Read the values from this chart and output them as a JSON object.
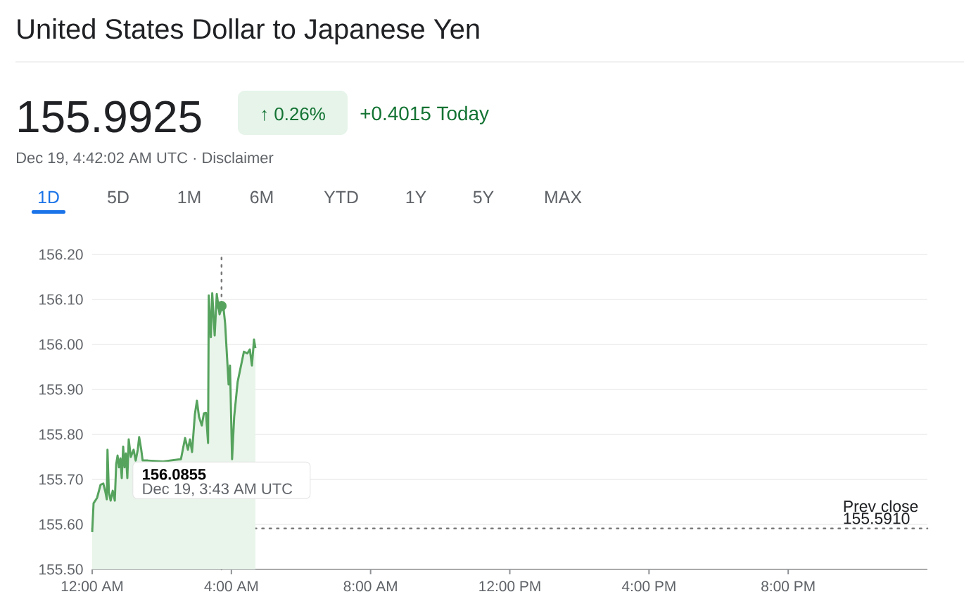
{
  "chart_data": {
    "type": "area",
    "title": "United States Dollar to Japanese Yen",
    "annotations": [
      "155.9925",
      "↑ 0.26%",
      "+0.4015 Today",
      "Dec 19, 4:42:02 AM UTC · Disclaimer",
      "1D",
      "5D",
      "1M",
      "6M",
      "YTD",
      "1Y",
      "5Y",
      "MAX",
      "156.0855",
      "Dec 19, 3:43 AM UTC"
    ],
    "x": [
      0,
      0.04,
      0.14,
      0.24,
      0.32,
      0.38,
      0.42,
      0.44,
      0.48,
      0.53,
      0.59,
      0.65,
      0.69,
      0.73,
      0.77,
      0.81,
      0.85,
      0.89,
      0.93,
      0.97,
      1.01,
      1.05,
      1.11,
      1.19,
      1.25,
      1.31,
      1.35,
      1.41,
      1.45,
      1.52,
      1.6,
      1.8,
      2.04,
      2.3,
      2.55,
      2.67,
      2.75,
      2.81,
      2.87,
      2.95,
      3.01,
      3.07,
      3.15,
      3.21,
      3.27,
      3.33,
      3.35,
      3.41,
      3.45,
      3.52,
      3.58,
      3.66,
      3.76,
      3.82,
      3.92,
      3.96,
      4.02,
      4.08,
      4.18,
      4.36,
      4.46,
      4.53,
      4.59,
      4.65,
      4.69
    ],
    "series": [
      {
        "color": "#56a35e",
        "values": [
          155.583,
          155.647,
          155.659,
          155.688,
          155.691,
          155.672,
          155.656,
          155.766,
          155.672,
          155.653,
          155.675,
          155.653,
          155.734,
          155.753,
          155.727,
          155.747,
          155.703,
          155.773,
          155.727,
          155.758,
          155.703,
          155.789,
          155.75,
          155.766,
          155.742,
          155.766,
          155.794,
          155.766,
          155.742,
          null,
          155.742,
          null,
          155.74,
          null,
          155.745,
          155.792,
          155.766,
          155.789,
          155.761,
          155.844,
          155.875,
          155.839,
          155.82,
          155.847,
          155.848,
          155.781,
          156.109,
          156.016,
          156.114,
          156.02,
          156.112,
          156.067,
          156.091,
          156.047,
          155.911,
          155.953,
          155.745,
          155.839,
          155.917,
          155.984,
          155.98,
          155.989,
          155.953,
          156.011,
          155.992
        ]
      },
      {
        "type": "scatter",
        "color": "#56a35e",
        "marker": "circle",
        "x": [
          3.717
        ],
        "values": [
          156.0855
        ]
      }
    ],
    "xlim": [
      0,
      24
    ],
    "xticks": [
      {
        "value": 0,
        "label": "12:00 AM"
      },
      {
        "value": 4,
        "label": "4:00 AM"
      },
      {
        "value": 8,
        "label": "8:00 AM"
      },
      {
        "value": 12,
        "label": "12:00 PM"
      },
      {
        "value": 16,
        "label": "4:00 PM"
      },
      {
        "value": 20,
        "label": "8:00 PM"
      }
    ],
    "ylim": [
      155.5,
      156.2
    ],
    "yticks": [
      {
        "value": 155.5,
        "label": "155.50"
      },
      {
        "value": 155.6,
        "label": "155.60"
      },
      {
        "value": 155.7,
        "label": "155.70"
      },
      {
        "value": 155.8,
        "label": "155.80"
      },
      {
        "value": 155.9,
        "label": "155.90"
      },
      {
        "value": 156.0,
        "label": "156.00"
      },
      {
        "value": 156.1,
        "label": "156.10"
      },
      {
        "value": 156.2,
        "label": "156.20"
      }
    ],
    "grid": "y",
    "ref_lines": [
      {
        "axis": "y",
        "value": 155.591,
        "label": "Prev close 155.5910",
        "color": "#7a7a7a",
        "line_style": "dotted"
      },
      {
        "axis": "x",
        "value": 3.717,
        "color": "#7a7a7a",
        "line_style": "dotted"
      }
    ]
  }
}
